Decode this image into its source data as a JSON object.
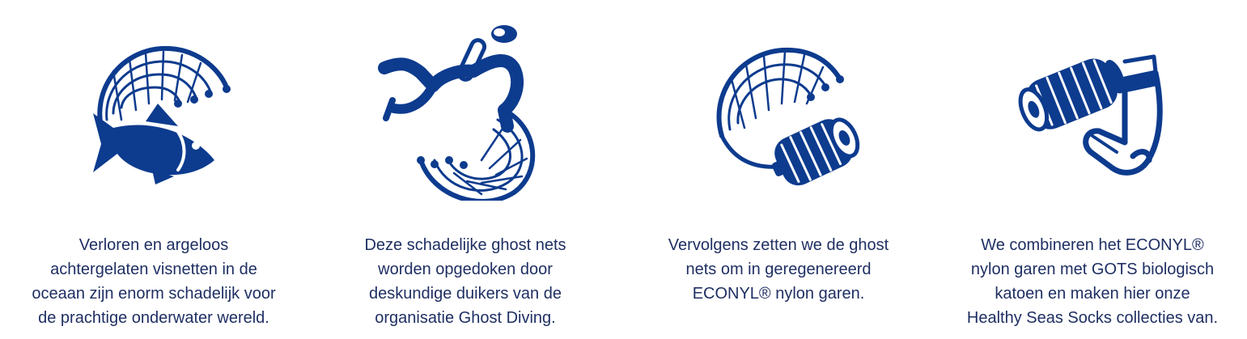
{
  "brand_color": "#0d3b8e",
  "text_color": "#1f2f63",
  "steps": [
    {
      "icon": "wave-fish-icon",
      "lines": [
        "Verloren en argeloos",
        "achtergelaten visnetten in de",
        "oceaan zijn enorm schadelijk voor",
        "de prachtige onderwater wereld."
      ]
    },
    {
      "icon": "diver-net-icon",
      "lines": [
        "Deze schadelijke ghost nets",
        "worden opgedoken door",
        "deskundige duikers van de",
        "organisatie Ghost Diving."
      ]
    },
    {
      "icon": "net-yarn-spool-icon",
      "lines": [
        "Vervolgens zetten we de ghost",
        "nets om in geregenereerd",
        "ECONYL® nylon garen."
      ]
    },
    {
      "icon": "yarn-sock-icon",
      "lines": [
        "We combineren het ECONYL®",
        "nylon garen met GOTS biologisch",
        "katoen en maken hier onze",
        "Healthy Seas Socks collecties van."
      ]
    }
  ]
}
